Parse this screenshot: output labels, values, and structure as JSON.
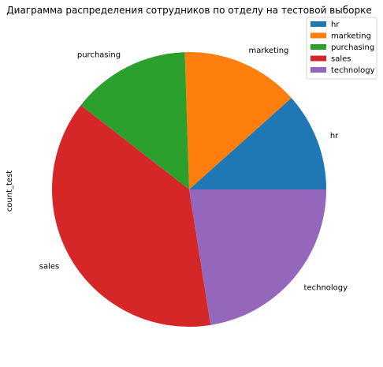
{
  "chart_data": {
    "type": "pie",
    "title": "Диаграмма распределения сотрудников по отделу на тестовой выборке",
    "ylabel": "count_test",
    "categories": [
      "hr",
      "marketing",
      "purchasing",
      "sales",
      "technology"
    ],
    "values": [
      11.6,
      13.9,
      14.0,
      38.0,
      22.5
    ],
    "colors": [
      "#1f77b4",
      "#ff7f0e",
      "#2ca02c",
      "#d62728",
      "#9467bd"
    ],
    "start_angle": 0,
    "direction": "counterclockwise",
    "legend": {
      "placement": "top-right",
      "entries": [
        "hr",
        "marketing",
        "purchasing",
        "sales",
        "technology"
      ]
    }
  }
}
